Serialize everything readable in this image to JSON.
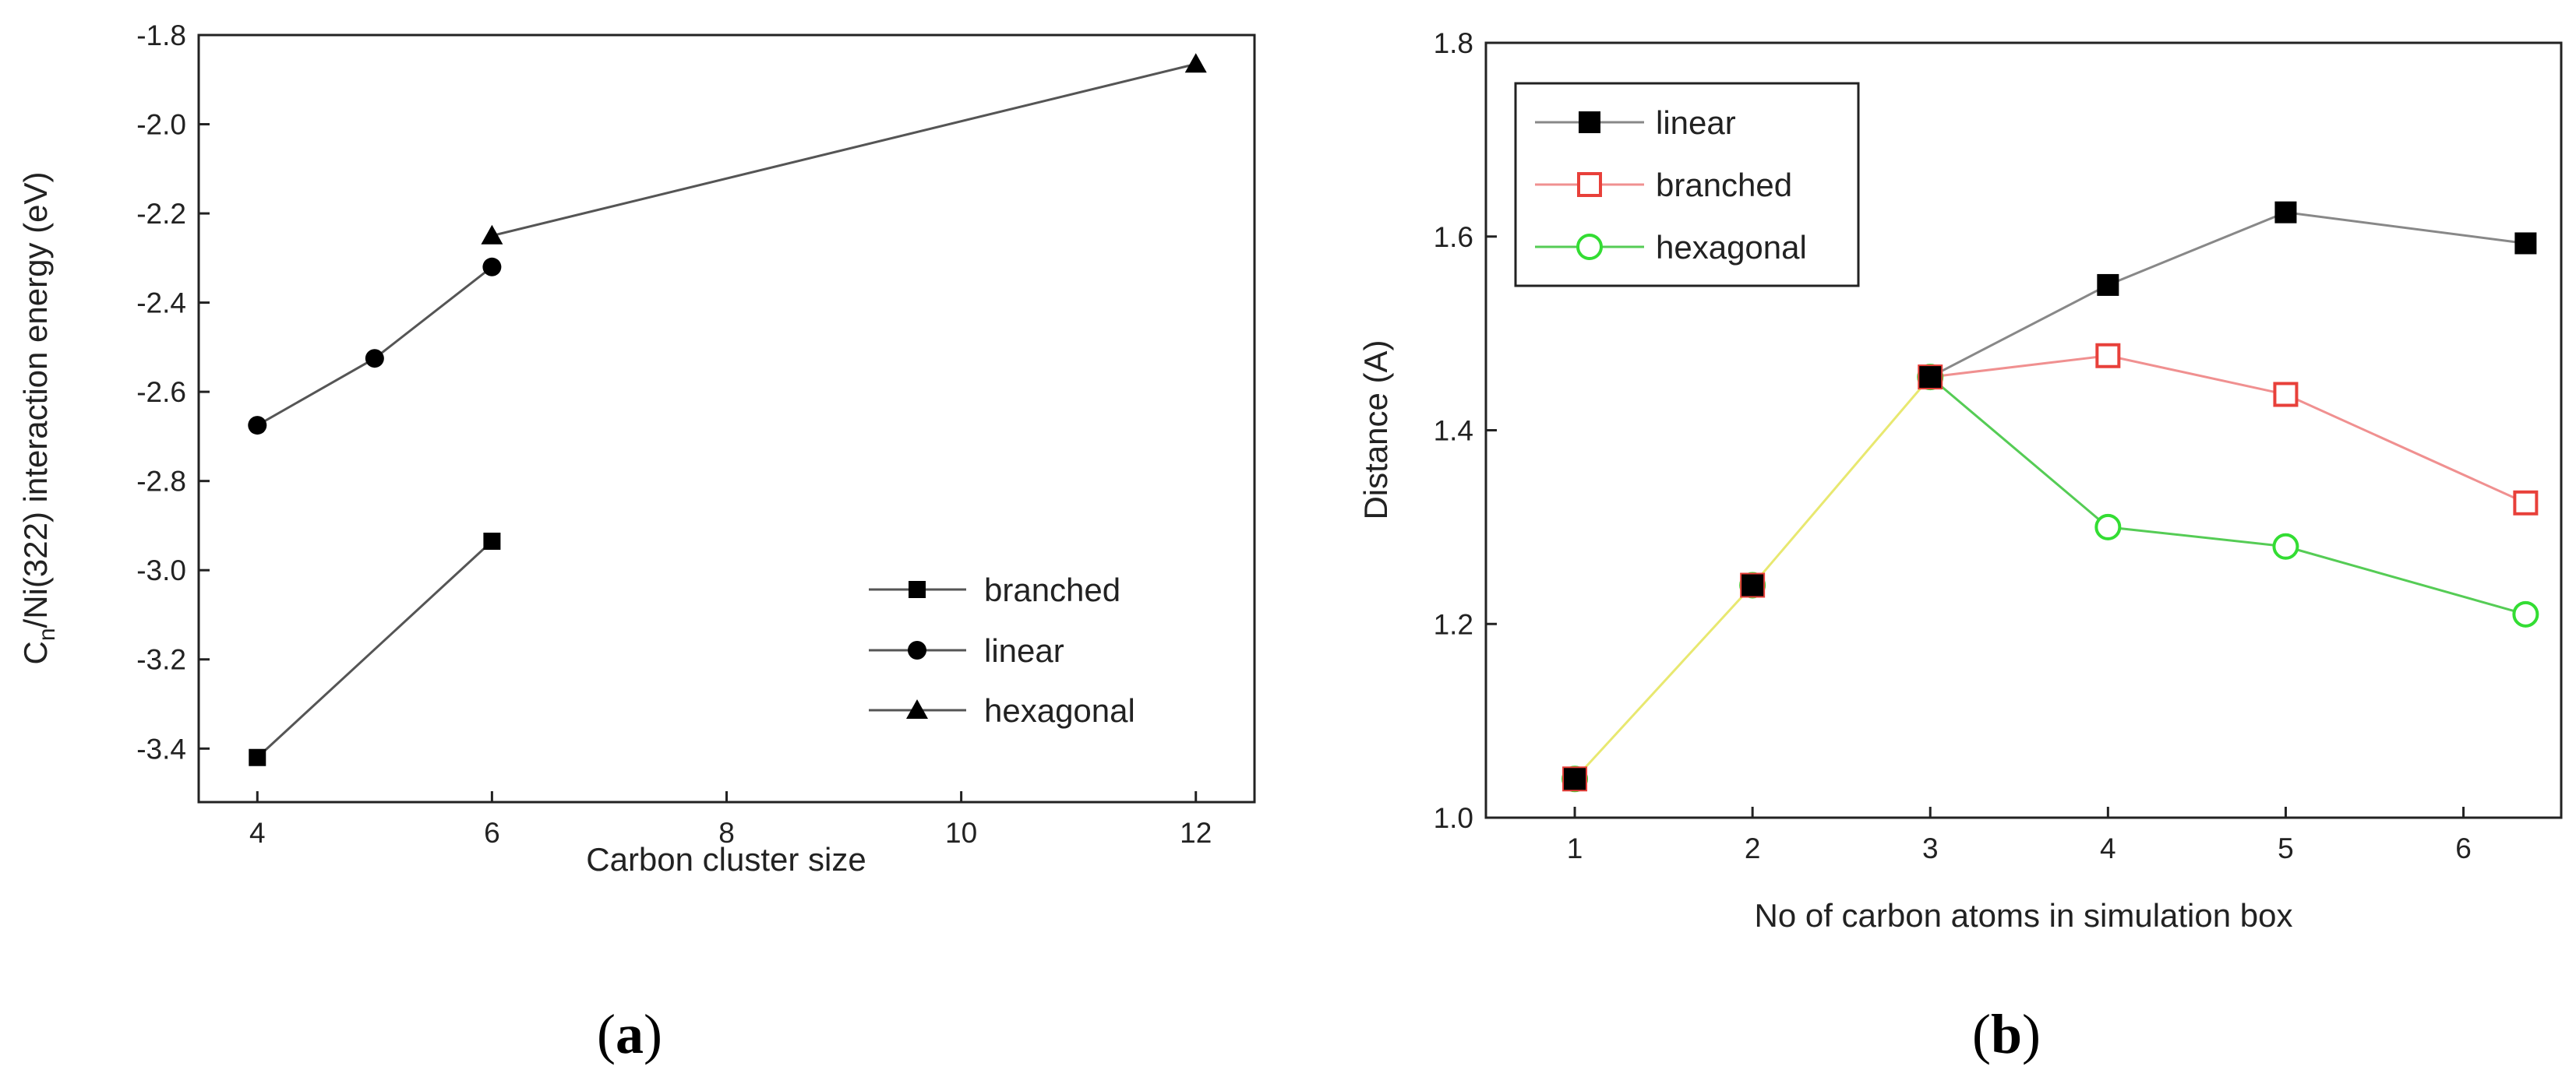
{
  "chart_data": [
    {
      "id": "a",
      "type": "line",
      "caption_open": "(",
      "caption_letter": "a",
      "caption_close": ")",
      "xlabel": "Carbon cluster size",
      "ylabel_main": "C",
      "ylabel_sub": "n",
      "ylabel_rest": "/Ni(322) interaction energy (eV)",
      "xlim": [
        3.5,
        12.5
      ],
      "ylim": [
        -3.52,
        -1.8
      ],
      "xticks": [
        4,
        6,
        8,
        10,
        12
      ],
      "xtick_labels": [
        "4",
        "6",
        "8",
        "10",
        "12"
      ],
      "yticks": [
        -3.4,
        -3.2,
        -3.0,
        -2.8,
        -2.6,
        -2.4,
        -2.2,
        -2.0,
        -1.8
      ],
      "ytick_labels": [
        "-3.4",
        "-3.2",
        "-3.0",
        "-2.8",
        "-2.6",
        "-2.4",
        "-2.2",
        "-2.0",
        "-1.8"
      ],
      "legend_position": "lower-right",
      "series": [
        {
          "name": "branched",
          "marker": "square",
          "color": "#000000",
          "line_color": "#555555",
          "x": [
            4,
            6
          ],
          "y": [
            -3.42,
            -2.935
          ]
        },
        {
          "name": "linear",
          "marker": "circle",
          "color": "#000000",
          "line_color": "#555555",
          "x": [
            4,
            5,
            6
          ],
          "y": [
            -2.675,
            -2.525,
            -2.32
          ]
        },
        {
          "name": "hexagonal",
          "marker": "triangle",
          "color": "#000000",
          "line_color": "#555555",
          "x": [
            6,
            12
          ],
          "y": [
            -2.25,
            -1.865
          ]
        }
      ]
    },
    {
      "id": "b",
      "type": "line",
      "caption_open": "(",
      "caption_letter": "b",
      "caption_close": ")",
      "xlabel": "No of carbon atoms in simulation box",
      "ylabel": "Distance (A)",
      "xlim": [
        0.5,
        6.55
      ],
      "ylim": [
        1.0,
        1.8
      ],
      "xticks": [
        1,
        2,
        3,
        4,
        5,
        6
      ],
      "xtick_labels": [
        "1",
        "2",
        "3",
        "4",
        "5",
        "6"
      ],
      "yticks": [
        1.0,
        1.2,
        1.4,
        1.6,
        1.8
      ],
      "ytick_labels": [
        "1.0",
        "1.2",
        "1.4",
        "1.6",
        "1.8"
      ],
      "legend_position": "top-left",
      "shared_segment": {
        "color": "#e8e870",
        "x": [
          1,
          2,
          3
        ],
        "y": [
          1.04,
          1.24,
          1.455
        ]
      },
      "series": [
        {
          "name": "linear",
          "marker": "filled-square",
          "color": "#000000",
          "line_color": "#888888",
          "x": [
            1,
            2,
            3,
            4,
            5,
            6.35
          ],
          "y": [
            1.04,
            1.24,
            1.455,
            1.55,
            1.625,
            1.593
          ]
        },
        {
          "name": "branched",
          "marker": "open-square",
          "color": "#e8403a",
          "line_color": "#f09090",
          "x": [
            1,
            2,
            3,
            4,
            5,
            6.35
          ],
          "y": [
            1.04,
            1.24,
            1.455,
            1.477,
            1.437,
            1.325
          ]
        },
        {
          "name": "hexagonal",
          "marker": "open-circle",
          "color": "#33dd33",
          "line_color": "#55cc55",
          "x": [
            1,
            2,
            3,
            4,
            5,
            6.35
          ],
          "y": [
            1.04,
            1.24,
            1.455,
            1.3,
            1.28,
            1.21
          ]
        }
      ]
    }
  ]
}
